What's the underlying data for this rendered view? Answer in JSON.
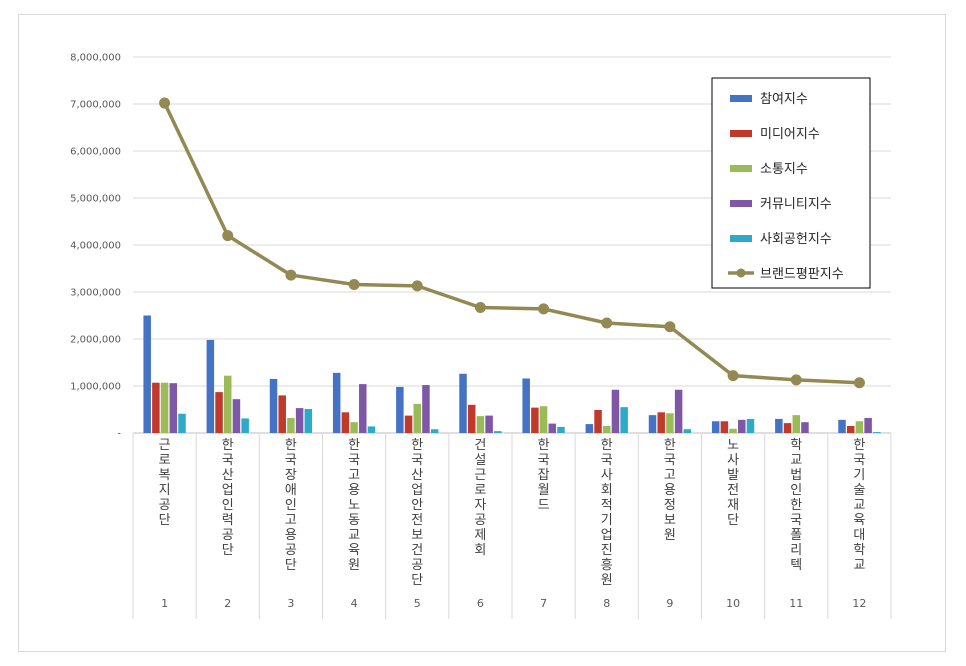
{
  "chart_data": {
    "type": "bar",
    "ylim": [
      0,
      8000000
    ],
    "y_ticks": [
      "-",
      "1,000,000",
      "2,000,000",
      "3,000,000",
      "4,000,000",
      "5,000,000",
      "6,000,000",
      "7,000,000",
      "8,000,000"
    ],
    "grid": true,
    "legend_position": "top-right",
    "ranks": [
      "1",
      "2",
      "3",
      "4",
      "5",
      "6",
      "7",
      "8",
      "9",
      "10",
      "11",
      "12"
    ],
    "categories": [
      "근로복지공단",
      "한국산업인력공단",
      "한국장애인고용공단",
      "한국고용노동교육원",
      "한국산업안전보건공단",
      "건설근로자공제회",
      "한국잡월드",
      "한국사회적기업진흥원",
      "한국고용정보원",
      "노사발전재단",
      "학교법인한국폴리텍",
      "한국기술교육대학교"
    ],
    "series": [
      {
        "name": "참여지수",
        "kind": "bar",
        "color": "#4472c4",
        "values": [
          2500000,
          1980000,
          1150000,
          1280000,
          980000,
          1260000,
          1160000,
          190000,
          380000,
          250000,
          300000,
          280000
        ]
      },
      {
        "name": "미디어지수",
        "kind": "bar",
        "color": "#c0392b",
        "values": [
          1070000,
          870000,
          800000,
          440000,
          370000,
          600000,
          540000,
          490000,
          440000,
          250000,
          210000,
          150000
        ]
      },
      {
        "name": "소통지수",
        "kind": "bar",
        "color": "#9bbb59",
        "values": [
          1070000,
          1220000,
          320000,
          230000,
          620000,
          360000,
          570000,
          150000,
          420000,
          90000,
          380000,
          250000
        ]
      },
      {
        "name": "커뮤니티지수",
        "kind": "bar",
        "color": "#7e57a6",
        "values": [
          1060000,
          720000,
          530000,
          1040000,
          1020000,
          370000,
          200000,
          920000,
          920000,
          280000,
          230000,
          320000
        ]
      },
      {
        "name": "사회공헌지수",
        "kind": "bar",
        "color": "#2eaac9",
        "values": [
          410000,
          310000,
          510000,
          140000,
          80000,
          40000,
          130000,
          550000,
          80000,
          300000,
          0,
          20000
        ]
      },
      {
        "name": "브랜드평판지수",
        "kind": "line",
        "color": "#938953",
        "values": [
          7020000,
          4200000,
          3360000,
          3160000,
          3130000,
          2670000,
          2640000,
          2340000,
          2260000,
          1220000,
          1130000,
          1070000
        ]
      }
    ]
  }
}
